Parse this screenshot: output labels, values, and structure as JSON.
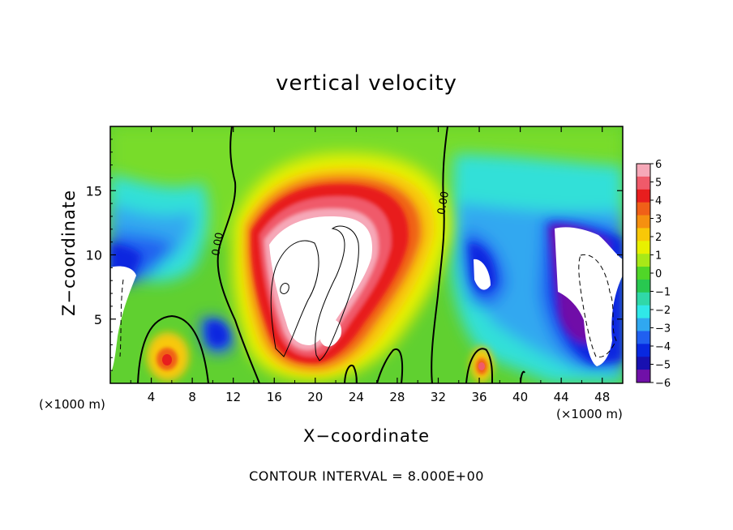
{
  "chart_data": {
    "type": "heatmap",
    "title": "vertical velocity",
    "xlabel": "X−coordinate",
    "ylabel": "Z−coordinate",
    "x_unit_label": "(×1000 m)",
    "footnote": "CONTOUR INTERVAL = 8.000E+00",
    "xlim": [
      0,
      50
    ],
    "ylim": [
      0,
      20
    ],
    "x_ticks": [
      4,
      8,
      12,
      16,
      20,
      24,
      28,
      32,
      36,
      40,
      44,
      48
    ],
    "y_ticks": [
      5,
      10,
      15
    ],
    "colorbar": {
      "min": -6,
      "max": 6,
      "tick_labels": [
        "6",
        "5",
        "4",
        "3",
        "2",
        "1",
        "0",
        "−1",
        "−2",
        "−3",
        "−4",
        "−5",
        "−6"
      ],
      "colors": [
        "#f6a8b8",
        "#f05a6a",
        "#e81e1e",
        "#f06018",
        "#f59010",
        "#f8c808",
        "#e8f000",
        "#a8e818",
        "#50d628",
        "#28c850",
        "#30d8a8",
        "#30e8e8",
        "#30a8f0",
        "#2060f0",
        "#0828e0",
        "#1810b0",
        "#7010a8"
      ]
    },
    "contour_labels": [
      {
        "x": 10.8,
        "z": 10.8,
        "text": "0.00"
      },
      {
        "x": 32.8,
        "z": 14.0,
        "text": "0.00"
      }
    ],
    "features": [
      {
        "name": "main updraft core",
        "x": [
          14,
          26
        ],
        "z": [
          1,
          14
        ],
        "w_max": "above 6"
      },
      {
        "name": "downdraft left",
        "x": [
          0,
          3
        ],
        "z": [
          1,
          10
        ],
        "w_min": "below -6"
      },
      {
        "name": "downdraft right",
        "x": [
          43,
          50
        ],
        "z": [
          1,
          12
        ],
        "w_min": "below -6"
      },
      {
        "name": "small updraft cell",
        "x": [
          3,
          8
        ],
        "z": [
          0,
          5
        ],
        "w_max": 5
      },
      {
        "name": "small updraft cell",
        "x": [
          35,
          37
        ],
        "z": [
          0,
          3
        ],
        "w_max": 5
      }
    ]
  }
}
